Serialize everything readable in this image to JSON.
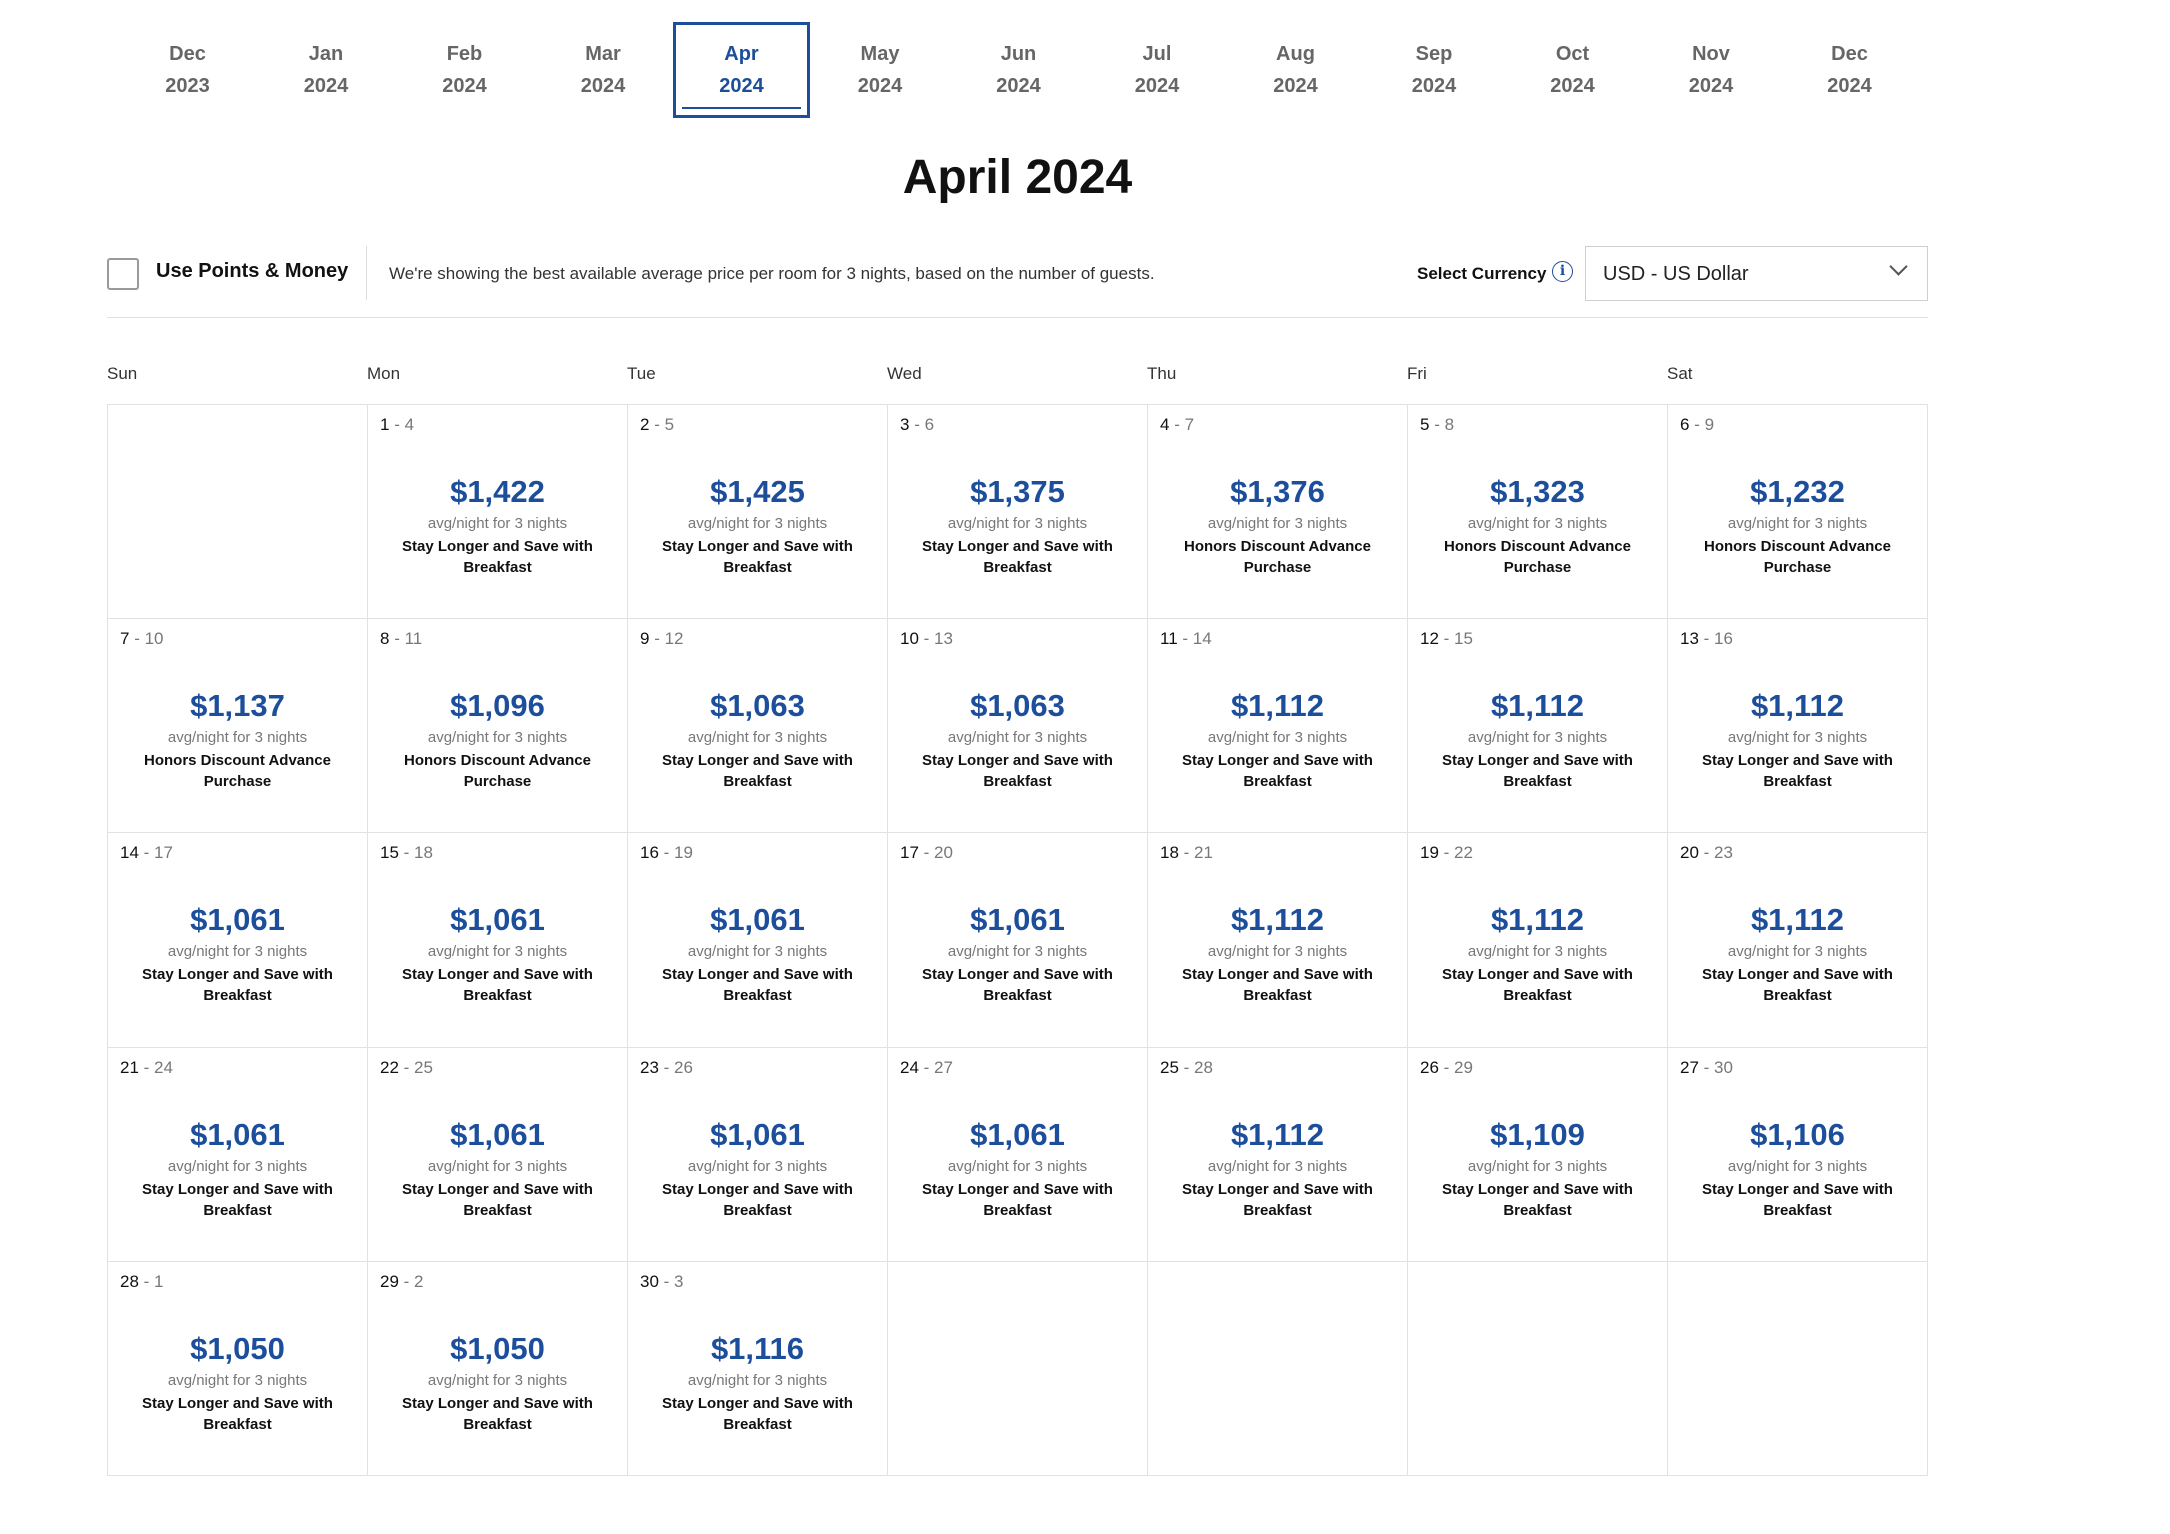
{
  "month_tabs": [
    {
      "month": "Dec",
      "year": "2023"
    },
    {
      "month": "Jan",
      "year": "2024"
    },
    {
      "month": "Feb",
      "year": "2024"
    },
    {
      "month": "Mar",
      "year": "2024"
    },
    {
      "month": "Apr",
      "year": "2024",
      "selected": true
    },
    {
      "month": "May",
      "year": "2024"
    },
    {
      "month": "Jun",
      "year": "2024"
    },
    {
      "month": "Jul",
      "year": "2024"
    },
    {
      "month": "Aug",
      "year": "2024"
    },
    {
      "month": "Sep",
      "year": "2024"
    },
    {
      "month": "Oct",
      "year": "2024"
    },
    {
      "month": "Nov",
      "year": "2024"
    },
    {
      "month": "Dec",
      "year": "2024"
    }
  ],
  "title": "April 2024",
  "toolbar": {
    "points_label": "Use Points & Money",
    "points_checked": false,
    "info_text": "We're showing the best available average price per room for 3 nights, based on the number of guests.",
    "currency_label": "Select Currency",
    "currency_value": "USD - US Dollar"
  },
  "weekdays": [
    "Sun",
    "Mon",
    "Tue",
    "Wed",
    "Thu",
    "Fri",
    "Sat"
  ],
  "colors": {
    "accent": "#1c4e9c"
  },
  "days": [
    null,
    {
      "start": "1",
      "end": "4",
      "price": "$1,422",
      "note": "avg/night for 3 nights",
      "rate": "Stay Longer and Save with Breakfast"
    },
    {
      "start": "2",
      "end": "5",
      "price": "$1,425",
      "note": "avg/night for 3 nights",
      "rate": "Stay Longer and Save with Breakfast"
    },
    {
      "start": "3",
      "end": "6",
      "price": "$1,375",
      "note": "avg/night for 3 nights",
      "rate": "Stay Longer and Save with Breakfast"
    },
    {
      "start": "4",
      "end": "7",
      "price": "$1,376",
      "note": "avg/night for 3 nights",
      "rate": "Honors Discount Advance Purchase"
    },
    {
      "start": "5",
      "end": "8",
      "price": "$1,323",
      "note": "avg/night for 3 nights",
      "rate": "Honors Discount Advance Purchase"
    },
    {
      "start": "6",
      "end": "9",
      "price": "$1,232",
      "note": "avg/night for 3 nights",
      "rate": "Honors Discount Advance Purchase"
    },
    {
      "start": "7",
      "end": "10",
      "price": "$1,137",
      "note": "avg/night for 3 nights",
      "rate": "Honors Discount Advance Purchase"
    },
    {
      "start": "8",
      "end": "11",
      "price": "$1,096",
      "note": "avg/night for 3 nights",
      "rate": "Honors Discount Advance Purchase"
    },
    {
      "start": "9",
      "end": "12",
      "price": "$1,063",
      "note": "avg/night for 3 nights",
      "rate": "Stay Longer and Save with Breakfast"
    },
    {
      "start": "10",
      "end": "13",
      "price": "$1,063",
      "note": "avg/night for 3 nights",
      "rate": "Stay Longer and Save with Breakfast"
    },
    {
      "start": "11",
      "end": "14",
      "price": "$1,112",
      "note": "avg/night for 3 nights",
      "rate": "Stay Longer and Save with Breakfast"
    },
    {
      "start": "12",
      "end": "15",
      "price": "$1,112",
      "note": "avg/night for 3 nights",
      "rate": "Stay Longer and Save with Breakfast"
    },
    {
      "start": "13",
      "end": "16",
      "price": "$1,112",
      "note": "avg/night for 3 nights",
      "rate": "Stay Longer and Save with Breakfast"
    },
    {
      "start": "14",
      "end": "17",
      "price": "$1,061",
      "note": "avg/night for 3 nights",
      "rate": "Stay Longer and Save with Breakfast"
    },
    {
      "start": "15",
      "end": "18",
      "price": "$1,061",
      "note": "avg/night for 3 nights",
      "rate": "Stay Longer and Save with Breakfast"
    },
    {
      "start": "16",
      "end": "19",
      "price": "$1,061",
      "note": "avg/night for 3 nights",
      "rate": "Stay Longer and Save with Breakfast"
    },
    {
      "start": "17",
      "end": "20",
      "price": "$1,061",
      "note": "avg/night for 3 nights",
      "rate": "Stay Longer and Save with Breakfast"
    },
    {
      "start": "18",
      "end": "21",
      "price": "$1,112",
      "note": "avg/night for 3 nights",
      "rate": "Stay Longer and Save with Breakfast"
    },
    {
      "start": "19",
      "end": "22",
      "price": "$1,112",
      "note": "avg/night for 3 nights",
      "rate": "Stay Longer and Save with Breakfast"
    },
    {
      "start": "20",
      "end": "23",
      "price": "$1,112",
      "note": "avg/night for 3 nights",
      "rate": "Stay Longer and Save with Breakfast"
    },
    {
      "start": "21",
      "end": "24",
      "price": "$1,061",
      "note": "avg/night for 3 nights",
      "rate": "Stay Longer and Save with Breakfast"
    },
    {
      "start": "22",
      "end": "25",
      "price": "$1,061",
      "note": "avg/night for 3 nights",
      "rate": "Stay Longer and Save with Breakfast"
    },
    {
      "start": "23",
      "end": "26",
      "price": "$1,061",
      "note": "avg/night for 3 nights",
      "rate": "Stay Longer and Save with Breakfast"
    },
    {
      "start": "24",
      "end": "27",
      "price": "$1,061",
      "note": "avg/night for 3 nights",
      "rate": "Stay Longer and Save with Breakfast"
    },
    {
      "start": "25",
      "end": "28",
      "price": "$1,112",
      "note": "avg/night for 3 nights",
      "rate": "Stay Longer and Save with Breakfast"
    },
    {
      "start": "26",
      "end": "29",
      "price": "$1,109",
      "note": "avg/night for 3 nights",
      "rate": "Stay Longer and Save with Breakfast"
    },
    {
      "start": "27",
      "end": "30",
      "price": "$1,106",
      "note": "avg/night for 3 nights",
      "rate": "Stay Longer and Save with Breakfast"
    },
    {
      "start": "28",
      "end": "1",
      "price": "$1,050",
      "note": "avg/night for 3 nights",
      "rate": "Stay Longer and Save with Breakfast"
    },
    {
      "start": "29",
      "end": "2",
      "price": "$1,050",
      "note": "avg/night for 3 nights",
      "rate": "Stay Longer and Save with Breakfast"
    },
    {
      "start": "30",
      "end": "3",
      "price": "$1,116",
      "note": "avg/night for 3 nights",
      "rate": "Stay Longer and Save with Breakfast"
    },
    null,
    null,
    null,
    null
  ]
}
